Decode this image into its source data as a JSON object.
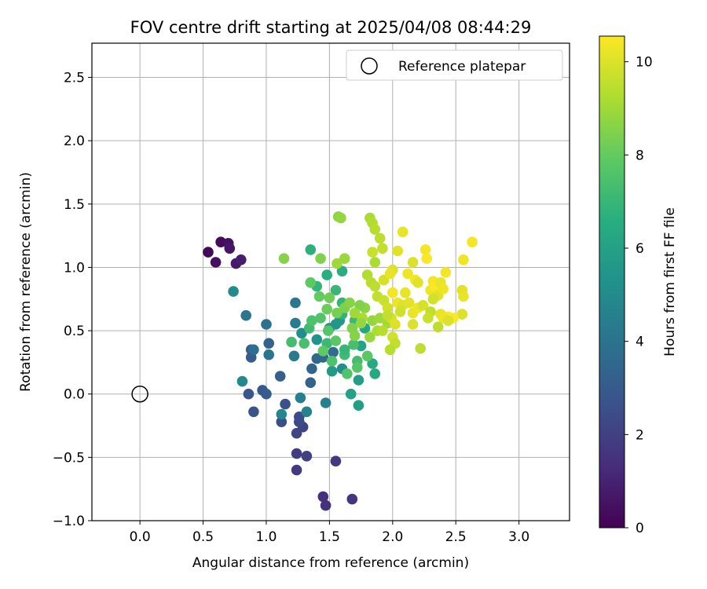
{
  "chart_data": {
    "type": "scatter",
    "title": "FOV centre drift starting at 2025/04/08 08:44:29",
    "xlabel": "Angular distance from reference (arcmin)",
    "ylabel": "Rotation from reference (arcmin)",
    "xlim": [
      -0.38,
      3.4
    ],
    "ylim": [
      -1.0,
      2.77
    ],
    "xticks": [
      "0.0",
      "0.5",
      "1.0",
      "1.5",
      "2.0",
      "2.5",
      "3.0"
    ],
    "yticks": [
      "−1.0",
      "−0.5",
      "0.0",
      "0.5",
      "1.0",
      "1.5",
      "2.0",
      "2.5"
    ],
    "grid": true,
    "legend": {
      "position": "top-right",
      "entries": [
        "Reference platepar"
      ]
    },
    "colorbar": {
      "label": "Hours from first FF file",
      "range": [
        0,
        10.55
      ],
      "ticks": [
        "0",
        "2",
        "4",
        "6",
        "8",
        "10"
      ],
      "colormap": "viridis"
    },
    "reference_point": {
      "x": 0.0,
      "y": 0.0
    },
    "series": [
      {
        "marker": "filled-circle",
        "points": [
          [
            0.54,
            1.12,
            0.2
          ],
          [
            0.64,
            1.2,
            0.3
          ],
          [
            0.6,
            1.04,
            0.4
          ],
          [
            0.7,
            1.19,
            0.5
          ],
          [
            0.71,
            1.15,
            0.6
          ],
          [
            0.76,
            1.03,
            0.7
          ],
          [
            0.8,
            1.06,
            0.8
          ],
          [
            1.45,
            -0.81,
            1.4
          ],
          [
            1.47,
            -0.88,
            1.5
          ],
          [
            1.68,
            -0.83,
            1.6
          ],
          [
            1.55,
            -0.53,
            1.7
          ],
          [
            1.24,
            -0.6,
            1.8
          ],
          [
            1.24,
            -0.47,
            1.9
          ],
          [
            1.32,
            -0.49,
            2.0
          ],
          [
            1.29,
            -0.26,
            2.1
          ],
          [
            1.24,
            -0.31,
            2.2
          ],
          [
            1.26,
            -0.22,
            2.3
          ],
          [
            1.26,
            -0.18,
            2.4
          ],
          [
            1.12,
            -0.22,
            2.5
          ],
          [
            1.15,
            -0.08,
            2.6
          ],
          [
            0.9,
            -0.14,
            2.7
          ],
          [
            0.86,
            0.0,
            2.8
          ],
          [
            0.97,
            0.03,
            2.9
          ],
          [
            1.0,
            0.0,
            3.0
          ],
          [
            0.88,
            0.29,
            3.0
          ],
          [
            0.88,
            0.35,
            3.1
          ],
          [
            1.11,
            0.14,
            3.2
          ],
          [
            1.02,
            0.4,
            3.3
          ],
          [
            1.36,
            0.2,
            3.4
          ],
          [
            1.4,
            0.28,
            3.5
          ],
          [
            1.45,
            0.29,
            3.6
          ],
          [
            1.53,
            0.33,
            3.7
          ],
          [
            1.35,
            0.09,
            3.3
          ],
          [
            0.9,
            0.35,
            3.8
          ],
          [
            1.0,
            0.55,
            3.9
          ],
          [
            1.02,
            0.31,
            4.0
          ],
          [
            0.84,
            0.62,
            4.1
          ],
          [
            1.23,
            0.72,
            4.2
          ],
          [
            1.22,
            0.3,
            4.3
          ],
          [
            1.23,
            0.56,
            4.4
          ],
          [
            1.27,
            -0.03,
            4.5
          ],
          [
            1.47,
            -0.07,
            4.6
          ],
          [
            1.32,
            -0.14,
            4.7
          ],
          [
            1.12,
            -0.16,
            4.8
          ],
          [
            0.81,
            0.1,
            4.9
          ],
          [
            0.74,
            0.81,
            5.0
          ],
          [
            1.28,
            0.48,
            5.1
          ],
          [
            1.6,
            0.2,
            5.2
          ],
          [
            1.4,
            0.43,
            5.3
          ],
          [
            1.5,
            0.52,
            5.4
          ],
          [
            1.55,
            0.55,
            5.5
          ],
          [
            1.58,
            0.58,
            5.6
          ],
          [
            1.52,
            0.18,
            5.7
          ],
          [
            1.73,
            0.11,
            5.8
          ],
          [
            1.73,
            -0.09,
            5.9
          ],
          [
            1.67,
            0.0,
            6.0
          ],
          [
            1.75,
            0.38,
            6.1
          ],
          [
            1.78,
            0.52,
            6.2
          ],
          [
            1.86,
            0.16,
            6.3
          ],
          [
            1.84,
            0.24,
            6.4
          ],
          [
            1.6,
            0.97,
            6.5
          ],
          [
            1.48,
            0.94,
            6.6
          ],
          [
            1.35,
            1.14,
            6.7
          ],
          [
            1.6,
            0.63,
            6.8
          ],
          [
            1.4,
            0.85,
            6.9
          ],
          [
            1.55,
            0.82,
            7.0
          ],
          [
            1.6,
            0.72,
            6.9
          ],
          [
            1.7,
            0.58,
            7.1
          ],
          [
            1.62,
            0.31,
            7.2
          ],
          [
            1.72,
            0.26,
            7.3
          ],
          [
            1.69,
            0.39,
            7.4
          ],
          [
            1.62,
            0.35,
            7.0
          ],
          [
            1.48,
            0.4,
            7.1
          ],
          [
            1.34,
            0.52,
            7.2
          ],
          [
            1.2,
            0.41,
            7.3
          ],
          [
            1.3,
            0.4,
            7.4
          ],
          [
            1.36,
            0.58,
            7.5
          ],
          [
            1.43,
            0.6,
            7.6
          ],
          [
            1.49,
            0.5,
            7.7
          ],
          [
            1.55,
            0.42,
            7.8
          ],
          [
            1.45,
            0.34,
            7.9
          ],
          [
            1.52,
            0.26,
            7.5
          ],
          [
            1.64,
            0.16,
            7.6
          ],
          [
            1.72,
            0.21,
            7.7
          ],
          [
            1.8,
            0.3,
            7.8
          ],
          [
            1.35,
            0.88,
            7.9
          ],
          [
            1.42,
            0.77,
            8.0
          ],
          [
            1.48,
            0.67,
            8.1
          ],
          [
            1.5,
            0.76,
            8.2
          ],
          [
            1.56,
            0.64,
            8.3
          ],
          [
            1.62,
            0.68,
            8.4
          ],
          [
            1.68,
            0.52,
            8.5
          ],
          [
            1.7,
            0.46,
            8.6
          ],
          [
            1.78,
            0.68,
            8.7
          ],
          [
            1.84,
            0.58,
            8.8
          ],
          [
            1.82,
            0.45,
            8.9
          ],
          [
            1.9,
            0.6,
            9.0
          ],
          [
            1.96,
            0.56,
            9.1
          ],
          [
            1.74,
            0.7,
            8.5
          ],
          [
            1.66,
            0.72,
            8.6
          ],
          [
            1.57,
            1.4,
            8.7
          ],
          [
            1.59,
            1.39,
            8.8
          ],
          [
            1.62,
            1.07,
            8.9
          ],
          [
            1.56,
            1.03,
            9.0
          ],
          [
            1.43,
            1.07,
            8.5
          ],
          [
            1.14,
            1.07,
            8.6
          ],
          [
            1.82,
            1.39,
            9.2
          ],
          [
            1.84,
            1.35,
            9.3
          ],
          [
            1.86,
            1.3,
            9.4
          ],
          [
            1.9,
            1.23,
            9.5
          ],
          [
            1.92,
            1.15,
            9.6
          ],
          [
            1.84,
            1.12,
            9.7
          ],
          [
            1.86,
            1.04,
            9.2
          ],
          [
            1.8,
            0.94,
            9.3
          ],
          [
            1.83,
            0.88,
            9.4
          ],
          [
            1.86,
            0.85,
            9.5
          ],
          [
            1.88,
            0.77,
            9.6
          ],
          [
            1.93,
            0.74,
            9.7
          ],
          [
            1.96,
            0.68,
            9.8
          ],
          [
            1.99,
            0.6,
            9.9
          ],
          [
            2.02,
            0.55,
            10.0
          ],
          [
            2.0,
            0.45,
            9.8
          ],
          [
            2.02,
            0.4,
            9.6
          ],
          [
            1.98,
            0.35,
            9.4
          ],
          [
            1.88,
            0.5,
            9.2
          ],
          [
            1.93,
            0.9,
            9.9
          ],
          [
            2.0,
            0.98,
            10.0
          ],
          [
            2.04,
            1.13,
            10.1
          ],
          [
            2.08,
            1.28,
            10.2
          ],
          [
            2.16,
            1.04,
            10.0
          ],
          [
            2.12,
            0.95,
            10.3
          ],
          [
            2.18,
            0.9,
            10.4
          ],
          [
            2.2,
            0.88,
            10.1
          ],
          [
            2.1,
            0.8,
            10.2
          ],
          [
            2.04,
            0.72,
            10.3
          ],
          [
            2.0,
            0.8,
            10.4
          ],
          [
            2.08,
            0.7,
            10.0
          ],
          [
            2.13,
            0.72,
            10.1
          ],
          [
            2.16,
            0.64,
            10.2
          ],
          [
            2.2,
            0.68,
            10.3
          ],
          [
            2.24,
            0.7,
            9.9
          ],
          [
            2.16,
            0.55,
            10.0
          ],
          [
            2.22,
            0.36,
            9.5
          ],
          [
            2.26,
            1.14,
            10.4
          ],
          [
            2.27,
            1.07,
            10.5
          ],
          [
            2.3,
            0.82,
            10.3
          ],
          [
            2.32,
            0.89,
            10.4
          ],
          [
            2.34,
            0.85,
            10.5
          ],
          [
            2.36,
            0.78,
            10.1
          ],
          [
            2.38,
            0.88,
            10.2
          ],
          [
            2.4,
            0.83,
            10.3
          ],
          [
            2.42,
            0.96,
            10.4
          ],
          [
            2.44,
            0.61,
            10.5
          ],
          [
            2.38,
            0.63,
            10.2
          ],
          [
            2.4,
            0.6,
            10.3
          ],
          [
            2.36,
            0.53,
            9.5
          ],
          [
            2.3,
            0.65,
            9.6
          ],
          [
            2.28,
            0.6,
            9.7
          ],
          [
            2.32,
            0.75,
            9.8
          ],
          [
            2.55,
            0.63,
            10.0
          ],
          [
            2.55,
            0.82,
            10.1
          ],
          [
            2.56,
            0.77,
            10.2
          ],
          [
            2.56,
            1.06,
            10.3
          ],
          [
            2.63,
            1.2,
            10.4
          ],
          [
            2.48,
            0.6,
            10.5
          ],
          [
            2.44,
            0.58,
            10.0
          ],
          [
            1.98,
            0.95,
            10.2
          ],
          [
            2.06,
            0.65,
            9.8
          ],
          [
            1.96,
            0.62,
            9.6
          ],
          [
            1.92,
            0.5,
            9.4
          ],
          [
            1.76,
            0.6,
            9.2
          ],
          [
            1.7,
            0.64,
            9.0
          ],
          [
            1.75,
            0.56,
            8.8
          ]
        ]
      }
    ]
  }
}
